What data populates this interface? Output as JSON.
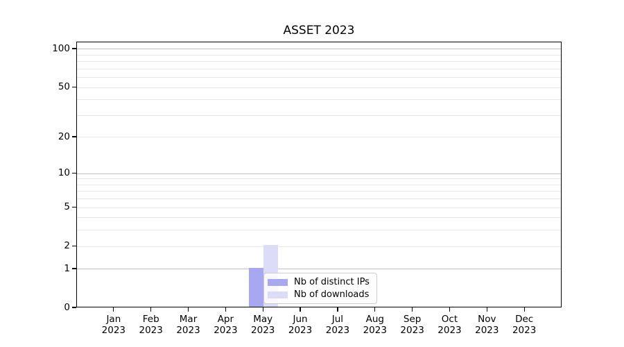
{
  "chart_data": {
    "type": "bar",
    "title": "ASSET 2023",
    "categories": [
      "Jan",
      "Feb",
      "Mar",
      "Apr",
      "May",
      "Jun",
      "Jul",
      "Aug",
      "Sep",
      "Oct",
      "Nov",
      "Dec"
    ],
    "x_year_label": "2023",
    "series": [
      {
        "name": "Nb of distinct IPs",
        "color": "#a8a8f0",
        "values": [
          0,
          0,
          0,
          0,
          1,
          0,
          0,
          0,
          0,
          0,
          0,
          0
        ]
      },
      {
        "name": "Nb of downloads",
        "color": "#dcdcf8",
        "values": [
          0,
          0,
          0,
          0,
          2,
          0,
          0,
          0,
          0,
          0,
          0,
          0
        ]
      }
    ],
    "y_scale": "log1p",
    "ylim": [
      0,
      113.3
    ],
    "y_ticks": [
      0,
      1,
      2,
      5,
      10,
      20,
      50,
      100
    ],
    "y_major_gridlines": [
      1,
      10,
      100
    ],
    "y_minor_gridlines": [
      2,
      3,
      4,
      5,
      6,
      7,
      8,
      9,
      20,
      30,
      40,
      50,
      60,
      70,
      80,
      90
    ],
    "grid": "on",
    "legend_position": "inside lower-center",
    "colors": {
      "grid_major": "#c2c2c2",
      "grid_minor": "#e8e8e8",
      "axis": "#000000",
      "background": "#ffffff"
    }
  }
}
